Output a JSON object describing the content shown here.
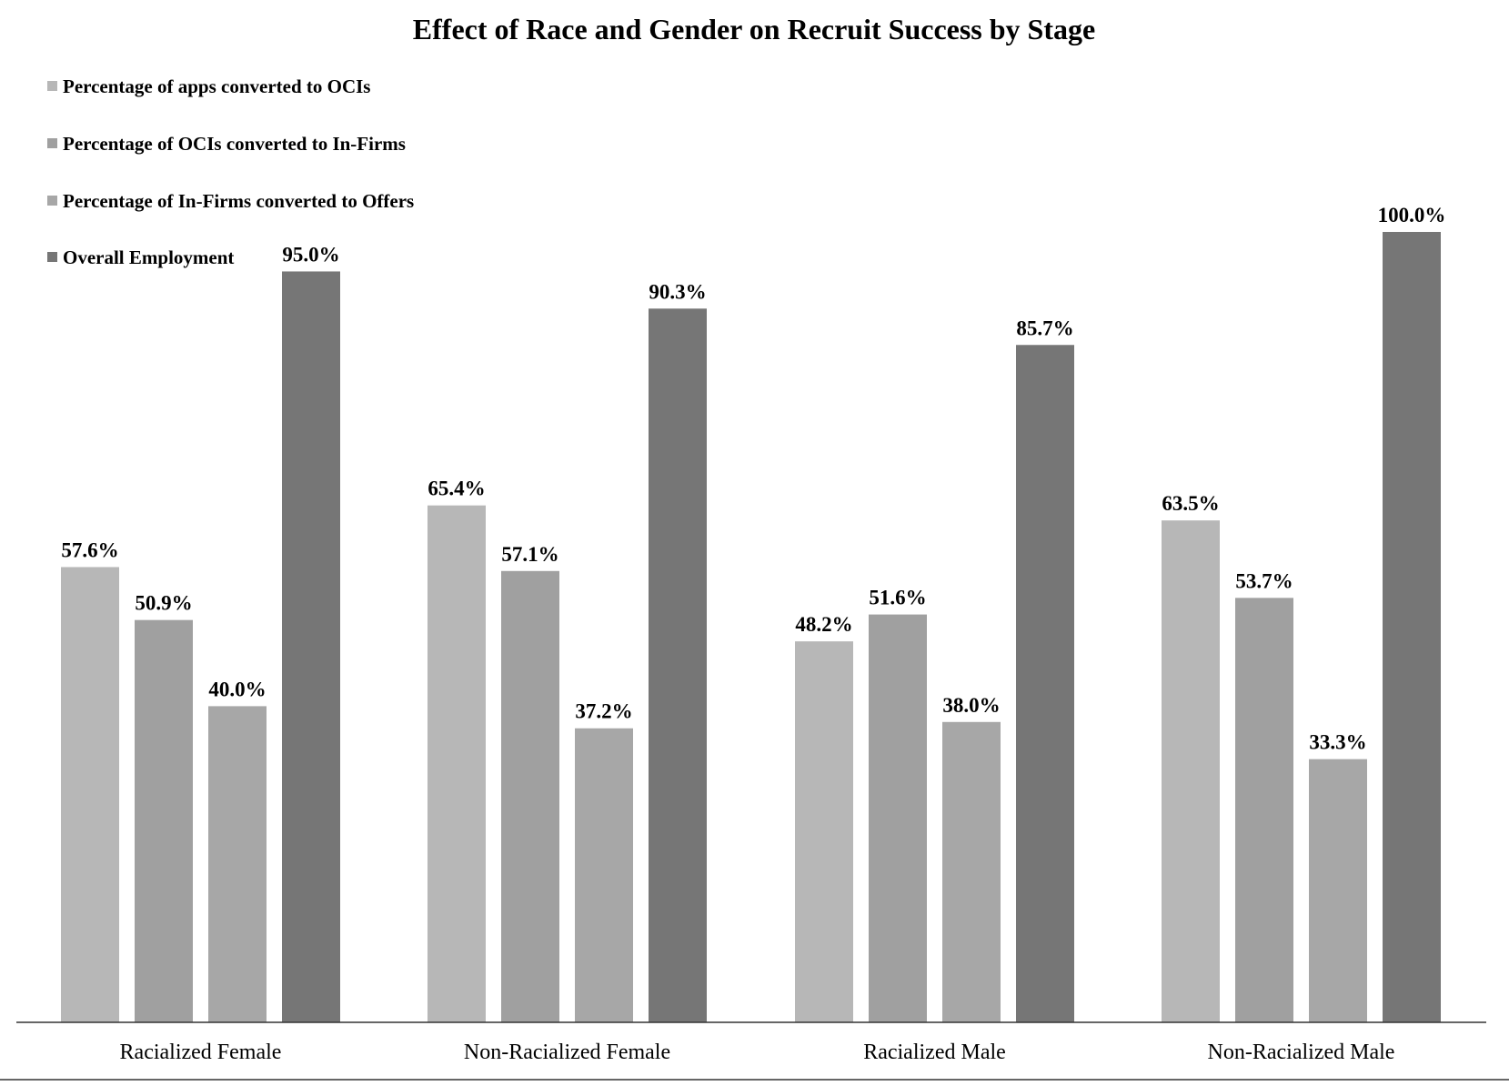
{
  "chart_data": {
    "type": "bar",
    "title": "Effect of Race and Gender on Recruit Success by Stage",
    "xlabel": "",
    "ylabel": "",
    "ylim": [
      0,
      100
    ],
    "grid": false,
    "legend_position": "top-left",
    "categories": [
      "Racialized Female",
      "Non-Racialized Female",
      "Racialized Male",
      "Non-Racialized Male"
    ],
    "series": [
      {
        "name": "Percentage of apps converted to OCIs",
        "color": "#b7b7b7",
        "values": [
          57.6,
          65.4,
          48.2,
          63.5
        ],
        "labels": [
          "57.6%",
          "65.4%",
          "48.2%",
          "63.5%"
        ]
      },
      {
        "name": "Percentage of OCIs converted to In-Firms",
        "color": "#a0a0a0",
        "values": [
          50.9,
          57.1,
          51.6,
          53.7
        ],
        "labels": [
          "50.9%",
          "57.1%",
          "51.6%",
          "53.7%"
        ]
      },
      {
        "name": "Percentage of In-Firms converted to Offers",
        "color": "#a7a7a7",
        "values": [
          40.0,
          37.2,
          38.0,
          33.3
        ],
        "labels": [
          "40.0%",
          "37.2%",
          "38.0%",
          "33.3%"
        ]
      },
      {
        "name": "Overall Employment",
        "color": "#767676",
        "values": [
          95.0,
          90.3,
          85.7,
          100.0
        ],
        "labels": [
          "95.0%",
          "90.3%",
          "85.7%",
          "100.0%"
        ]
      }
    ]
  }
}
